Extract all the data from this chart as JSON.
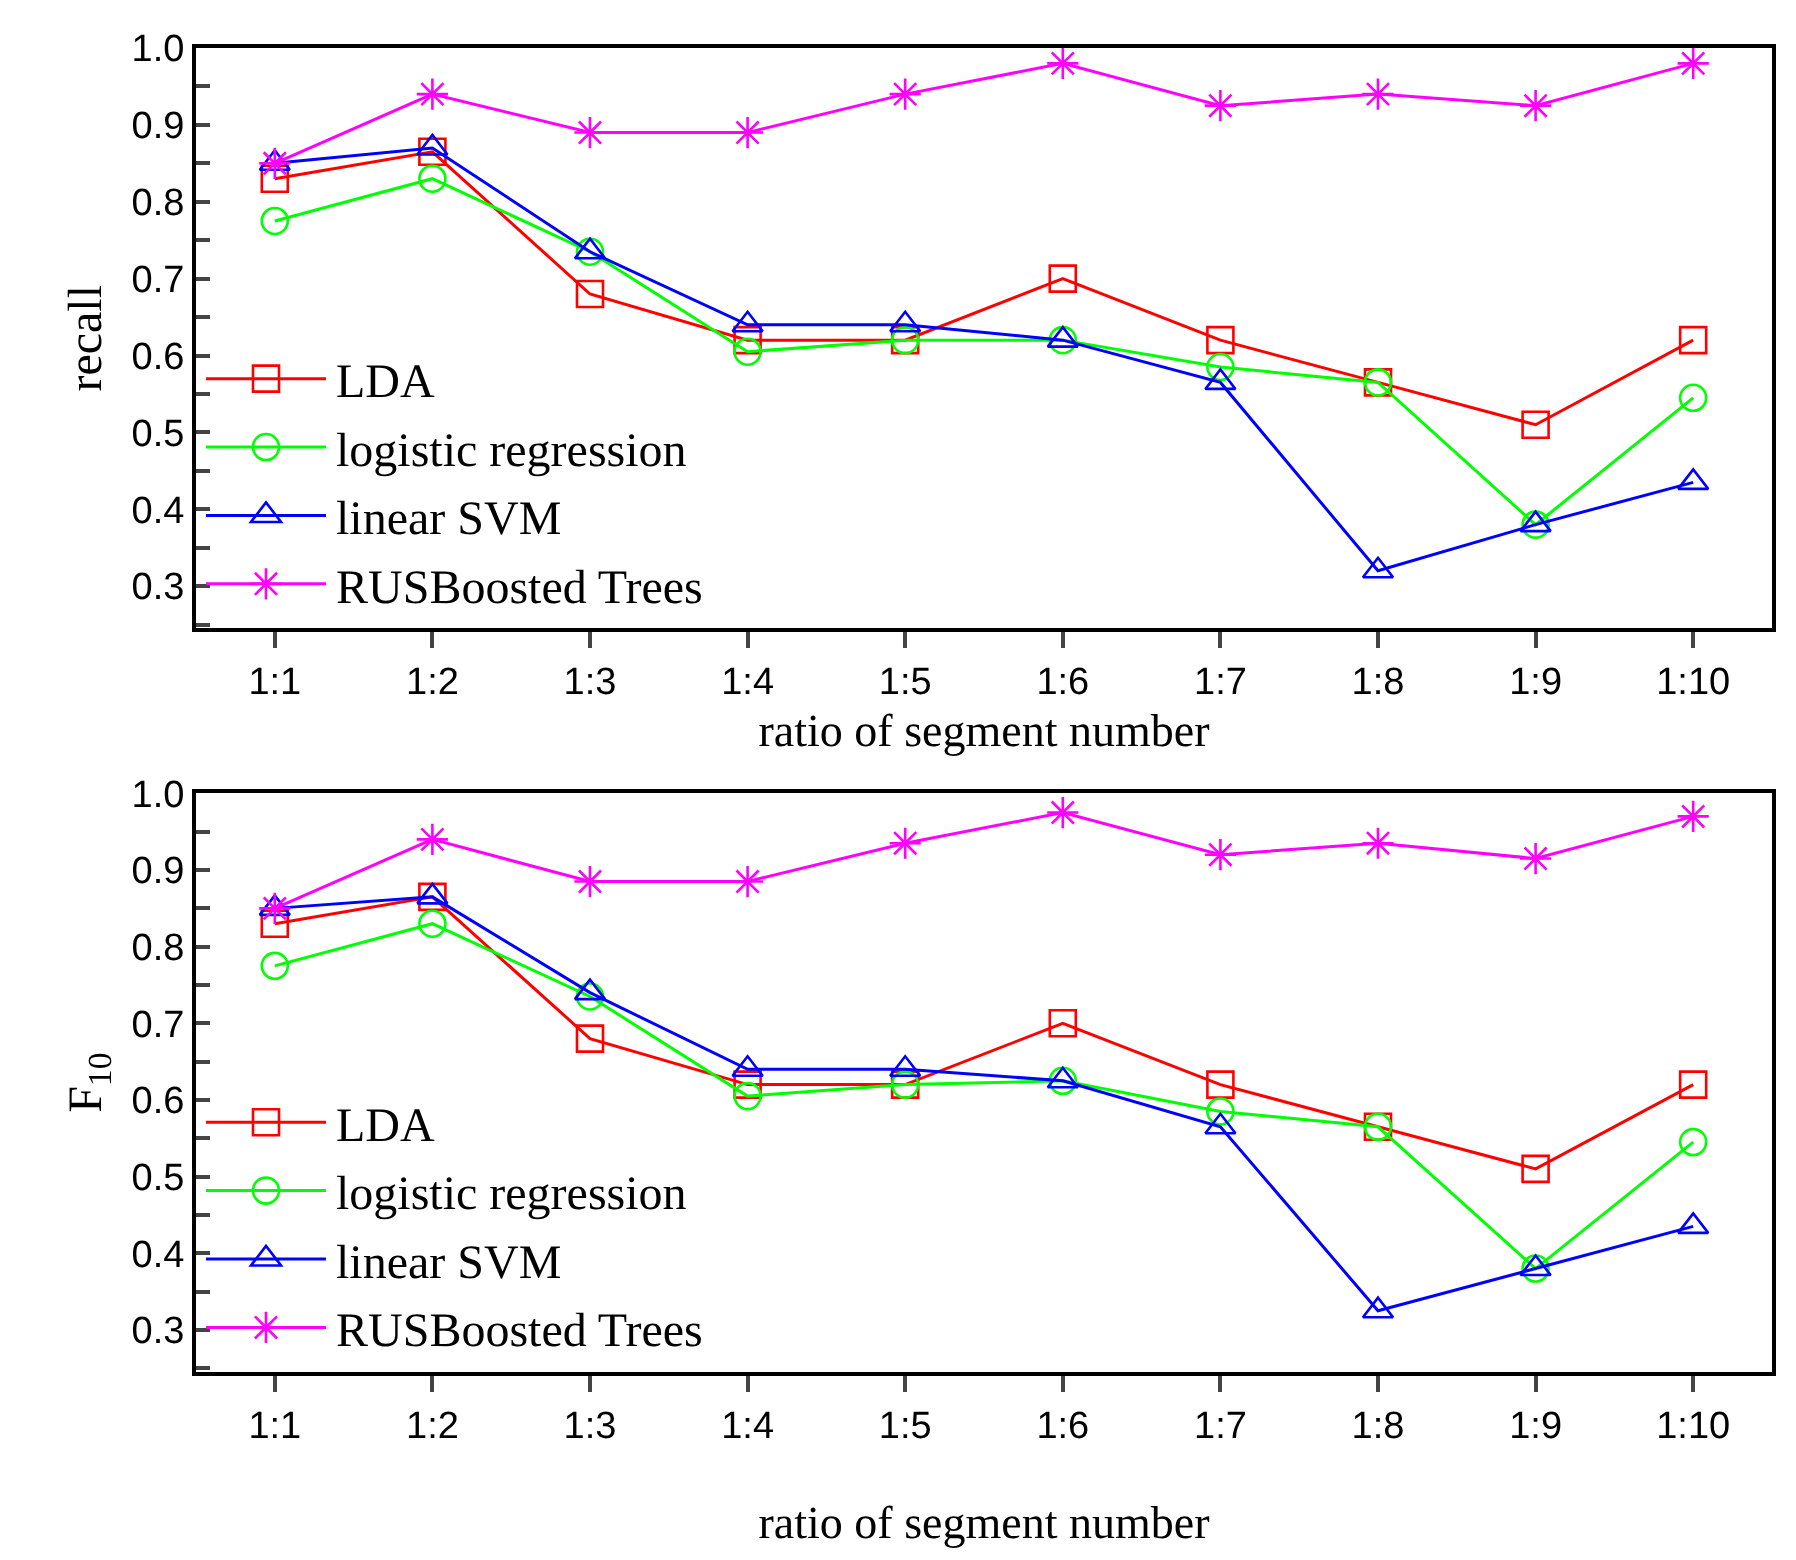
{
  "chart_data": [
    {
      "type": "line",
      "categories": [
        "1:1",
        "1:2",
        "1:3",
        "1:4",
        "1:5",
        "1:6",
        "1:7",
        "1:8",
        "1:9",
        "1:10"
      ],
      "xlabel": "ratio of segment number",
      "ylabel": "recall",
      "ylim": [
        0.245,
        1.0
      ],
      "yticks": [
        {
          "value": 0.25,
          "label": null
        },
        0.3,
        {
          "value": 0.35,
          "label": null
        },
        0.4,
        {
          "value": 0.45,
          "label": null
        },
        0.5,
        {
          "value": 0.55,
          "label": null
        },
        0.6,
        {
          "value": 0.65,
          "label": null
        },
        0.7,
        {
          "value": 0.75,
          "label": null
        },
        0.8,
        {
          "value": 0.85,
          "label": null
        },
        0.9,
        {
          "value": 0.95,
          "label": null
        },
        {
          "value": 1.0,
          "label": "1.0"
        }
      ],
      "legend": "bottom left",
      "series": [
        {
          "name": "LDA",
          "color": "#ff0000",
          "marker": "square",
          "values": [
            0.83,
            0.865,
            0.68,
            0.62,
            0.62,
            0.7,
            0.62,
            0.565,
            0.51,
            0.62
          ]
        },
        {
          "name": "logistic regression",
          "color": "#00ff00",
          "marker": "circle",
          "values": [
            0.775,
            0.83,
            0.735,
            0.605,
            0.62,
            0.62,
            0.585,
            0.565,
            0.38,
            0.545
          ]
        },
        {
          "name": "linear SVM",
          "color": "#0000ff",
          "marker": "triangle",
          "values": [
            0.85,
            0.87,
            0.735,
            0.64,
            0.64,
            0.62,
            0.565,
            0.32,
            0.38,
            0.435
          ]
        },
        {
          "name": "RUSBoosted Trees",
          "color": "#ff00ff",
          "marker": "cross",
          "values": [
            0.85,
            0.94,
            0.89,
            0.89,
            0.94,
            0.98,
            0.925,
            0.94,
            0.925,
            0.98
          ]
        }
      ]
    },
    {
      "type": "line",
      "categories": [
        "1:1",
        "1:2",
        "1:3",
        "1:4",
        "1:5",
        "1:6",
        "1:7",
        "1:8",
        "1:9",
        "1:10"
      ],
      "xlabel": "ratio of segment number",
      "ylabel": "F$_{10}$",
      "ylim": [
        0.245,
        1.0
      ],
      "yticks": [
        {
          "value": 0.25,
          "label": null
        },
        0.3,
        {
          "value": 0.35,
          "label": null
        },
        0.4,
        {
          "value": 0.45,
          "label": null
        },
        0.5,
        {
          "value": 0.55,
          "label": null
        },
        0.6,
        {
          "value": 0.65,
          "label": null
        },
        0.7,
        {
          "value": 0.75,
          "label": null
        },
        0.8,
        {
          "value": 0.85,
          "label": null
        },
        0.9,
        {
          "value": 0.95,
          "label": null
        },
        {
          "value": 1.0,
          "label": "1.0"
        }
      ],
      "legend": "bottom left",
      "series": [
        {
          "name": "LDA",
          "color": "#ff0000",
          "marker": "square",
          "values": [
            0.83,
            0.865,
            0.68,
            0.62,
            0.62,
            0.7,
            0.62,
            0.565,
            0.51,
            0.62
          ]
        },
        {
          "name": "logistic regression",
          "color": "#00ff00",
          "marker": "circle",
          "values": [
            0.775,
            0.83,
            0.735,
            0.605,
            0.62,
            0.625,
            0.585,
            0.565,
            0.38,
            0.545
          ]
        },
        {
          "name": "linear SVM",
          "color": "#0000ff",
          "marker": "triangle",
          "values": [
            0.85,
            0.865,
            0.74,
            0.64,
            0.64,
            0.625,
            0.565,
            0.325,
            0.38,
            0.435
          ]
        },
        {
          "name": "RUSBoosted Trees",
          "color": "#ff00ff",
          "marker": "cross",
          "values": [
            0.85,
            0.94,
            0.885,
            0.885,
            0.935,
            0.975,
            0.92,
            0.935,
            0.915,
            0.97
          ]
        }
      ]
    }
  ]
}
